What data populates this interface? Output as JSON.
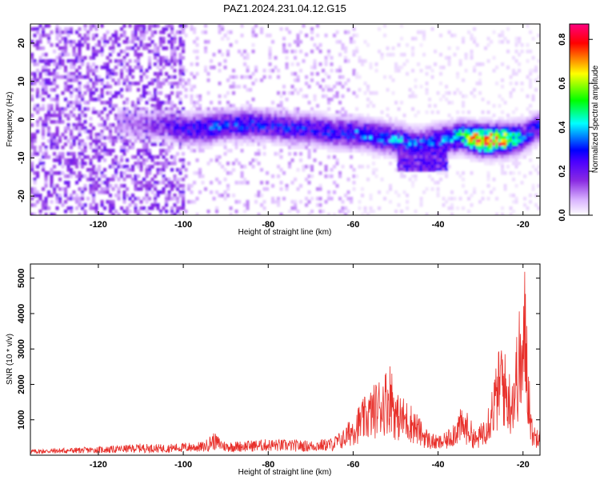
{
  "title": "PAZ1.2024.231.04.12.G15",
  "chart_data": [
    {
      "type": "heatmap",
      "xlabel": "Height of straight line (km)",
      "ylabel": "Frequency (Hz)",
      "xlim": [
        -136,
        -16
      ],
      "ylim": [
        -25,
        25
      ],
      "xticks": [
        -120,
        -100,
        -80,
        -60,
        -40,
        -20
      ],
      "yticks": [
        -20,
        -10,
        0,
        10,
        20
      ],
      "colorbar": {
        "label": "Normalized spectral amplitude",
        "range": [
          0.0,
          0.87
        ],
        "ticks": [
          "0.0",
          "0.2",
          "0.4",
          "0.6",
          "0.8"
        ],
        "tick_values": [
          0.0,
          0.2,
          0.4,
          0.6,
          0.8
        ],
        "colors": [
          "#ffffff",
          "#d9b3ff",
          "#8a2be2",
          "#4b00ff",
          "#0000ff",
          "#00ffff",
          "#00ff00",
          "#ffff00",
          "#ff0000",
          "#ff0080"
        ]
      },
      "ridge": {
        "x": [
          -115,
          -110,
          -105,
          -100,
          -95,
          -90,
          -85,
          -80,
          -75,
          -70,
          -65,
          -60,
          -55,
          -50,
          -45,
          -40,
          -35,
          -30,
          -25,
          -20,
          -16
        ],
        "frequency": [
          0,
          -1,
          -1,
          -2,
          -2,
          -1,
          -1,
          -1,
          -2,
          -2,
          -3,
          -3,
          -4,
          -5,
          -6,
          -5,
          -4,
          -5,
          -5,
          -4,
          -1
        ],
        "amplitude": [
          0.12,
          0.15,
          0.2,
          0.3,
          0.35,
          0.33,
          0.35,
          0.3,
          0.32,
          0.3,
          0.32,
          0.35,
          0.38,
          0.4,
          0.35,
          0.35,
          0.5,
          0.87,
          0.8,
          0.35,
          0.3
        ]
      }
    },
    {
      "type": "line",
      "xlabel": "Height of straight line (km)",
      "ylabel": "SNR (10 * v/v)",
      "xlim": [
        -136,
        -16
      ],
      "ylim": [
        0,
        5400
      ],
      "xticks": [
        -120,
        -100,
        -80,
        -60,
        -40,
        -20
      ],
      "yticks": [
        1000,
        2000,
        3000,
        4000,
        5000
      ],
      "series": [
        {
          "color": "#e8302b",
          "x": [
            -136,
            -130,
            -125,
            -120,
            -115,
            -110,
            -105,
            -100,
            -95,
            -93,
            -90,
            -85,
            -80,
            -75,
            -70,
            -65,
            -62,
            -60,
            -58,
            -56,
            -54,
            -52,
            -51,
            -50,
            -48,
            -46,
            -44,
            -42,
            -40,
            -38,
            -36,
            -35,
            -33,
            -31,
            -30,
            -28,
            -26,
            -25,
            -24,
            -23,
            -22,
            -21,
            -20,
            -19.5,
            -19,
            -18,
            -17,
            -16
          ],
          "values": [
            150,
            180,
            200,
            220,
            250,
            300,
            280,
            320,
            350,
            600,
            350,
            380,
            420,
            400,
            380,
            450,
            700,
            1100,
            1400,
            1700,
            2000,
            2300,
            2500,
            1600,
            1500,
            1300,
            900,
            600,
            500,
            600,
            1000,
            1200,
            1100,
            600,
            800,
            1500,
            2500,
            3300,
            2500,
            2200,
            2600,
            3800,
            3600,
            5300,
            3500,
            1000,
            700,
            1200
          ]
        }
      ]
    }
  ]
}
